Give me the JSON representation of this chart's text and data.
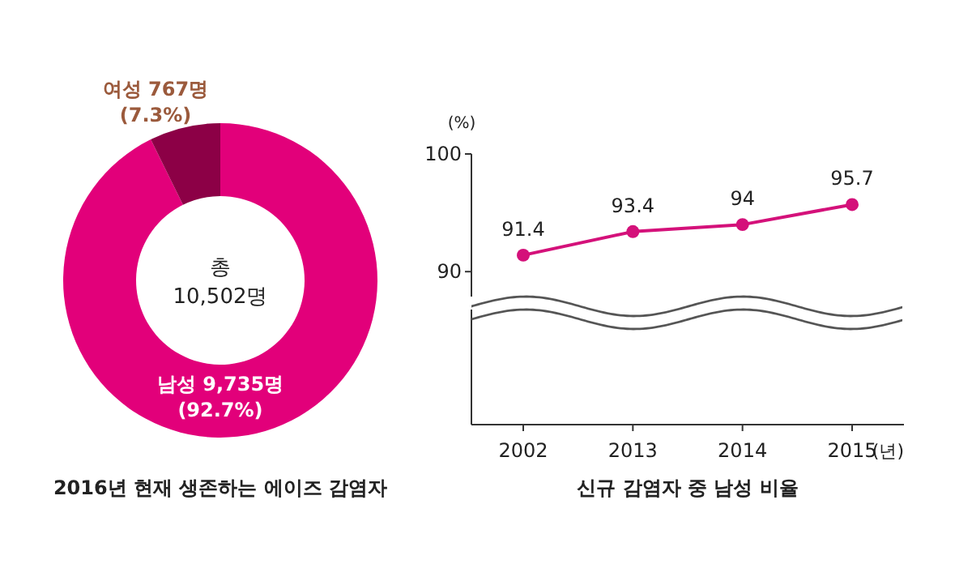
{
  "chart_data": [
    {
      "type": "donut",
      "title": "2016년 현재 생존하는 에이즈 감염자",
      "categories": [
        "남성 9,735명",
        "여성 767명"
      ],
      "values": [
        92.7,
        7.3
      ],
      "colors": [
        "#e2007a",
        "#8c0046"
      ],
      "value_labels": [
        "(92.7%)",
        "(7.3%)"
      ],
      "annotations": [
        "총",
        "10,502명"
      ]
    },
    {
      "type": "line",
      "title": "신규 감염자 중 남성 비율",
      "categories": [
        "2002",
        "2013",
        "2014",
        "2015"
      ],
      "xlabel": "(년)",
      "ylabel": "(%)",
      "ylim": [
        77,
        100
      ],
      "yticks": [
        90,
        100
      ],
      "series": [
        {
          "color": "#d4117a",
          "values": [
            91.4,
            93.4,
            94,
            95.7
          ]
        }
      ],
      "marker": "circle",
      "data_labels": true
    }
  ]
}
